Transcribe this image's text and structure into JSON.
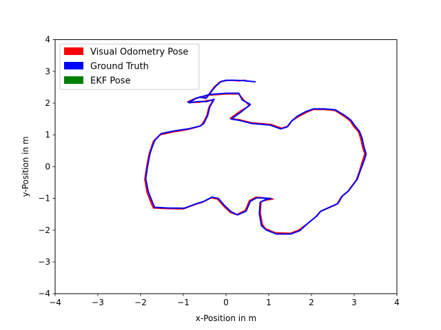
{
  "chart_data": {
    "type": "line",
    "title": "",
    "xlabel": "x-Position in m",
    "ylabel": "y-Position in m",
    "xlim": [
      -4,
      4
    ],
    "ylim": [
      -4,
      4
    ],
    "xticks": [
      -4,
      -3,
      -2,
      -1,
      0,
      1,
      2,
      3,
      4
    ],
    "yticks": [
      -4,
      -3,
      -2,
      -1,
      0,
      1,
      2,
      3,
      4
    ],
    "grid": false,
    "legend_position": "upper-left",
    "legend": [
      {
        "label": "Visual Odometry Pose",
        "color": "#ff0000"
      },
      {
        "label": "Ground Truth",
        "color": "#0000ff"
      },
      {
        "label": "EKF Pose",
        "color": "#008000"
      }
    ],
    "series": [
      {
        "name": "Visual Odometry Pose",
        "color": "#ff0000",
        "points": [
          [
            0.52,
            2.69
          ],
          [
            0.43,
            2.72
          ],
          [
            0.3,
            2.7
          ],
          [
            0.12,
            2.72
          ],
          [
            0.0,
            2.71
          ],
          [
            -0.15,
            2.66
          ],
          [
            -0.28,
            2.5
          ],
          [
            -0.4,
            2.28
          ],
          [
            -0.48,
            2.15
          ],
          [
            -0.62,
            2.19
          ],
          [
            -0.75,
            2.12
          ],
          [
            -0.83,
            2.02
          ],
          [
            -0.62,
            2.03
          ],
          [
            -0.48,
            2.07
          ],
          [
            -0.3,
            2.1
          ],
          [
            -0.4,
            1.87
          ],
          [
            -0.45,
            1.6
          ],
          [
            -0.55,
            1.35
          ],
          [
            -0.62,
            1.27
          ],
          [
            -0.9,
            1.17
          ],
          [
            -1.25,
            1.09
          ],
          [
            -1.55,
            1.0
          ],
          [
            -1.7,
            0.8
          ],
          [
            -1.75,
            0.6
          ],
          [
            -1.8,
            0.4
          ],
          [
            -1.85,
            0.05
          ],
          [
            -1.9,
            -0.4
          ],
          [
            -1.85,
            -0.8
          ],
          [
            -1.75,
            -1.15
          ],
          [
            -1.7,
            -1.3
          ],
          [
            -1.4,
            -1.32
          ],
          [
            -1.0,
            -1.33
          ],
          [
            -0.7,
            -1.18
          ],
          [
            -0.55,
            -1.12
          ],
          [
            -0.35,
            -0.98
          ],
          [
            -0.2,
            -1.02
          ],
          [
            -0.05,
            -1.25
          ],
          [
            0.1,
            -1.44
          ],
          [
            0.25,
            -1.51
          ],
          [
            0.45,
            -1.38
          ],
          [
            0.55,
            -1.07
          ],
          [
            0.7,
            -0.96
          ],
          [
            0.85,
            -0.98
          ],
          [
            1.1,
            -1.02
          ],
          [
            0.95,
            -1.05
          ],
          [
            0.82,
            -1.1
          ],
          [
            0.8,
            -1.45
          ],
          [
            0.85,
            -1.82
          ],
          [
            0.92,
            -1.95
          ],
          [
            1.15,
            -2.08
          ],
          [
            1.5,
            -2.1
          ],
          [
            1.7,
            -2.0
          ],
          [
            1.9,
            -1.8
          ],
          [
            2.1,
            -1.58
          ],
          [
            2.2,
            -1.42
          ],
          [
            2.4,
            -1.3
          ],
          [
            2.6,
            -1.18
          ],
          [
            2.7,
            -0.95
          ],
          [
            2.85,
            -0.78
          ],
          [
            2.95,
            -0.6
          ],
          [
            3.05,
            -0.42
          ],
          [
            3.13,
            -0.12
          ],
          [
            3.2,
            0.2
          ],
          [
            3.25,
            0.4
          ],
          [
            3.2,
            0.6
          ],
          [
            3.15,
            0.9
          ],
          [
            3.1,
            1.1
          ],
          [
            3.0,
            1.25
          ],
          [
            2.9,
            1.45
          ],
          [
            2.75,
            1.6
          ],
          [
            2.55,
            1.77
          ],
          [
            2.3,
            1.8
          ],
          [
            2.05,
            1.8
          ],
          [
            1.9,
            1.72
          ],
          [
            1.7,
            1.58
          ],
          [
            1.55,
            1.45
          ],
          [
            1.45,
            1.27
          ],
          [
            1.3,
            1.21
          ],
          [
            1.05,
            1.33
          ],
          [
            0.6,
            1.38
          ],
          [
            0.3,
            1.48
          ],
          [
            0.1,
            1.52
          ],
          [
            0.35,
            1.76
          ],
          [
            0.55,
            1.92
          ],
          [
            0.4,
            2.12
          ],
          [
            0.3,
            2.29
          ],
          [
            0.0,
            2.29
          ],
          [
            -0.4,
            2.25
          ],
          [
            -0.7,
            2.16
          ],
          [
            -0.9,
            2.04
          ]
        ]
      },
      {
        "name": "Ground Truth",
        "color": "#0000ff",
        "points": [
          [
            0.68,
            2.67
          ],
          [
            0.55,
            2.69
          ],
          [
            0.4,
            2.71
          ],
          [
            0.2,
            2.72
          ],
          [
            0.0,
            2.72
          ],
          [
            -0.12,
            2.68
          ],
          [
            -0.25,
            2.52
          ],
          [
            -0.38,
            2.3
          ],
          [
            -0.46,
            2.16
          ],
          [
            -0.6,
            2.2
          ],
          [
            -0.73,
            2.13
          ],
          [
            -0.86,
            2.01
          ],
          [
            -0.65,
            2.05
          ],
          [
            -0.45,
            2.05
          ],
          [
            -0.28,
            2.12
          ],
          [
            -0.38,
            1.88
          ],
          [
            -0.43,
            1.61
          ],
          [
            -0.52,
            1.36
          ],
          [
            -0.6,
            1.28
          ],
          [
            -0.88,
            1.19
          ],
          [
            -1.23,
            1.12
          ],
          [
            -1.52,
            1.04
          ],
          [
            -1.67,
            0.82
          ],
          [
            -1.73,
            0.61
          ],
          [
            -1.78,
            0.41
          ],
          [
            -1.83,
            0.06
          ],
          [
            -1.88,
            -0.38
          ],
          [
            -1.82,
            -0.78
          ],
          [
            -1.72,
            -1.13
          ],
          [
            -1.67,
            -1.28
          ],
          [
            -1.38,
            -1.3
          ],
          [
            -0.98,
            -1.31
          ],
          [
            -0.68,
            -1.16
          ],
          [
            -0.53,
            -1.1
          ],
          [
            -0.33,
            -0.96
          ],
          [
            -0.18,
            -1.0
          ],
          [
            -0.03,
            -1.23
          ],
          [
            0.12,
            -1.42
          ],
          [
            0.27,
            -1.52
          ],
          [
            0.47,
            -1.4
          ],
          [
            0.57,
            -1.09
          ],
          [
            0.72,
            -0.98
          ],
          [
            0.87,
            -0.99
          ],
          [
            1.05,
            -1.0
          ],
          [
            0.92,
            -1.04
          ],
          [
            0.8,
            -1.12
          ],
          [
            0.78,
            -1.48
          ],
          [
            0.83,
            -1.86
          ],
          [
            0.95,
            -2.0
          ],
          [
            1.18,
            -2.12
          ],
          [
            1.52,
            -2.12
          ],
          [
            1.72,
            -2.02
          ],
          [
            1.92,
            -1.78
          ],
          [
            2.12,
            -1.56
          ],
          [
            2.22,
            -1.4
          ],
          [
            2.42,
            -1.28
          ],
          [
            2.62,
            -1.16
          ],
          [
            2.72,
            -0.93
          ],
          [
            2.87,
            -0.76
          ],
          [
            2.97,
            -0.58
          ],
          [
            3.07,
            -0.4
          ],
          [
            3.15,
            -0.1
          ],
          [
            3.24,
            0.22
          ],
          [
            3.28,
            0.4
          ],
          [
            3.23,
            0.62
          ],
          [
            3.18,
            0.92
          ],
          [
            3.12,
            1.12
          ],
          [
            3.02,
            1.28
          ],
          [
            2.92,
            1.47
          ],
          [
            2.77,
            1.62
          ],
          [
            2.56,
            1.79
          ],
          [
            2.3,
            1.82
          ],
          [
            2.05,
            1.82
          ],
          [
            1.88,
            1.74
          ],
          [
            1.68,
            1.6
          ],
          [
            1.53,
            1.43
          ],
          [
            1.43,
            1.25
          ],
          [
            1.28,
            1.19
          ],
          [
            1.03,
            1.31
          ],
          [
            0.6,
            1.36
          ],
          [
            0.3,
            1.46
          ],
          [
            0.12,
            1.5
          ],
          [
            0.37,
            1.74
          ],
          [
            0.57,
            1.96
          ],
          [
            0.38,
            2.1
          ],
          [
            0.3,
            2.31
          ],
          [
            0.0,
            2.31
          ],
          [
            -0.4,
            2.27
          ],
          [
            -0.72,
            2.14
          ],
          [
            -0.88,
            2.03
          ]
        ]
      },
      {
        "name": "EKF Pose",
        "color": "#008000",
        "points": []
      }
    ]
  }
}
